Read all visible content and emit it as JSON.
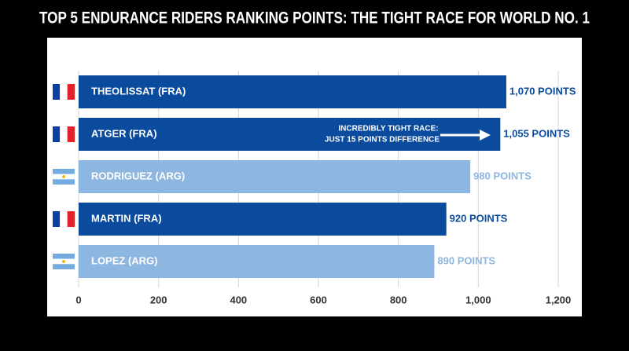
{
  "chart_data": {
    "type": "hbar",
    "title": "TOP 5 ENDURANCE RIDERS RANKING POINTS: THE TIGHT RACE FOR WORLD NO. 1",
    "categories": [
      "THEOLISSAT (FRA)",
      "ATGER (FRA)",
      "RODRIGUEZ (ARG)",
      "MARTIN (FRA)",
      "LOPEZ (ARG)"
    ],
    "values": [
      1070,
      1055,
      980,
      920,
      890
    ],
    "value_labels": [
      "1,070 POINTS",
      "1,055 POINTS",
      "980 POINTS",
      "920 POINTS",
      "890 POINTS"
    ],
    "colors": [
      "#0b4b9e",
      "#0b4b9e",
      "#8db6e0",
      "#0b4b9e",
      "#8db6e0"
    ],
    "xlim": [
      0,
      1200
    ],
    "xticks": [
      0,
      200,
      400,
      600,
      800,
      {
        "value": 1000,
        "label": "1,000"
      },
      {
        "value": 1200,
        "label": "1,200"
      }
    ],
    "grid": true,
    "annotation": [
      "INCREDIBLY TIGHT RACE:",
      "JUST 15 POINTS DIFFERENCE"
    ]
  }
}
